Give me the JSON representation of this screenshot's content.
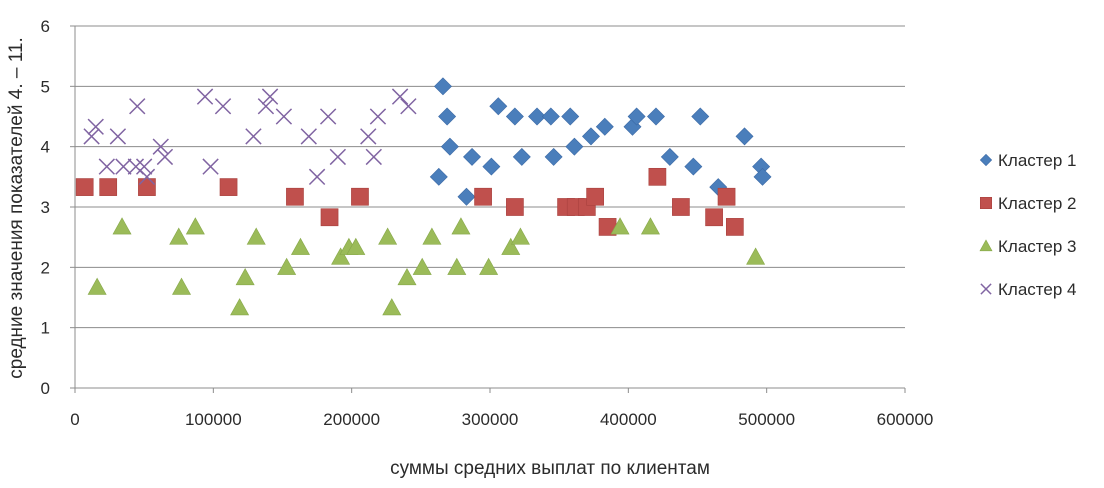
{
  "chart_data": {
    "type": "scatter",
    "title": "",
    "xlabel": "суммы средних выплат по клиентам",
    "ylabel": "средние значения показателей  4. – 11.",
    "xlim": [
      0,
      600000
    ],
    "ylim": [
      0,
      6
    ],
    "x_ticks": [
      "0",
      "100000",
      "200000",
      "300000",
      "400000",
      "500000",
      "600000"
    ],
    "y_ticks": [
      "0",
      "1",
      "2",
      "3",
      "4",
      "5",
      "6"
    ],
    "grid": "horizontal",
    "legend_position": "right",
    "series": [
      {
        "name": "Кластер 1",
        "marker": "diamond",
        "color": "#4a7ebb",
        "points": [
          [
            263000,
            3.5
          ],
          [
            266000,
            5.0
          ],
          [
            269000,
            4.5
          ],
          [
            271000,
            4.0
          ],
          [
            283000,
            3.17
          ],
          [
            287000,
            3.83
          ],
          [
            301000,
            3.67
          ],
          [
            306000,
            4.67
          ],
          [
            318000,
            4.5
          ],
          [
            323000,
            3.83
          ],
          [
            334000,
            4.5
          ],
          [
            344000,
            4.5
          ],
          [
            346000,
            3.83
          ],
          [
            358000,
            4.5
          ],
          [
            361000,
            4.0
          ],
          [
            373000,
            4.17
          ],
          [
            383000,
            4.33
          ],
          [
            403000,
            4.33
          ],
          [
            406000,
            4.5
          ],
          [
            420000,
            4.5
          ],
          [
            430000,
            3.83
          ],
          [
            447000,
            3.67
          ],
          [
            452000,
            4.5
          ],
          [
            465000,
            3.33
          ],
          [
            484000,
            4.17
          ],
          [
            496000,
            3.67
          ],
          [
            497000,
            3.5
          ]
        ]
      },
      {
        "name": "Кластер 2",
        "marker": "square",
        "color": "#c0504d",
        "points": [
          [
            7000,
            3.33
          ],
          [
            24000,
            3.33
          ],
          [
            52000,
            3.33
          ],
          [
            111000,
            3.33
          ],
          [
            159000,
            3.17
          ],
          [
            184000,
            2.83
          ],
          [
            206000,
            3.17
          ],
          [
            295000,
            3.17
          ],
          [
            318000,
            3.0
          ],
          [
            355000,
            3.0
          ],
          [
            362000,
            3.0
          ],
          [
            370000,
            3.0
          ],
          [
            376000,
            3.17
          ],
          [
            385000,
            2.67
          ],
          [
            421000,
            3.5
          ],
          [
            438000,
            3.0
          ],
          [
            462000,
            2.83
          ],
          [
            471000,
            3.17
          ],
          [
            477000,
            2.67
          ]
        ]
      },
      {
        "name": "Кластер 3",
        "marker": "triangle",
        "color": "#9bbb59",
        "points": [
          [
            16000,
            1.67
          ],
          [
            34000,
            2.67
          ],
          [
            75000,
            2.5
          ],
          [
            77000,
            1.67
          ],
          [
            87000,
            2.67
          ],
          [
            119000,
            1.33
          ],
          [
            123000,
            1.83
          ],
          [
            131000,
            2.5
          ],
          [
            153000,
            2.0
          ],
          [
            163000,
            2.33
          ],
          [
            192000,
            2.17
          ],
          [
            198000,
            2.33
          ],
          [
            203000,
            2.33
          ],
          [
            226000,
            2.5
          ],
          [
            229000,
            1.33
          ],
          [
            240000,
            1.83
          ],
          [
            251000,
            2.0
          ],
          [
            258000,
            2.5
          ],
          [
            276000,
            2.0
          ],
          [
            279000,
            2.67
          ],
          [
            299000,
            2.0
          ],
          [
            315000,
            2.33
          ],
          [
            322000,
            2.5
          ],
          [
            394000,
            2.67
          ],
          [
            416000,
            2.67
          ],
          [
            492000,
            2.17
          ]
        ]
      },
      {
        "name": "Кластер 4",
        "marker": "cross",
        "color": "#8064a2",
        "points": [
          [
            12000,
            4.17
          ],
          [
            15000,
            4.33
          ],
          [
            23000,
            3.67
          ],
          [
            31000,
            4.17
          ],
          [
            35000,
            3.67
          ],
          [
            44000,
            3.67
          ],
          [
            45000,
            4.67
          ],
          [
            50000,
            3.67
          ],
          [
            52000,
            3.5
          ],
          [
            62000,
            4.0
          ],
          [
            65000,
            3.83
          ],
          [
            94000,
            4.83
          ],
          [
            98000,
            3.67
          ],
          [
            107000,
            4.67
          ],
          [
            129000,
            4.17
          ],
          [
            138000,
            4.67
          ],
          [
            141000,
            4.83
          ],
          [
            151000,
            4.5
          ],
          [
            169000,
            4.17
          ],
          [
            175000,
            3.5
          ],
          [
            183000,
            4.5
          ],
          [
            190000,
            3.83
          ],
          [
            212000,
            4.17
          ],
          [
            216000,
            3.83
          ],
          [
            219000,
            4.5
          ],
          [
            235000,
            4.83
          ],
          [
            241000,
            4.67
          ]
        ]
      }
    ]
  }
}
